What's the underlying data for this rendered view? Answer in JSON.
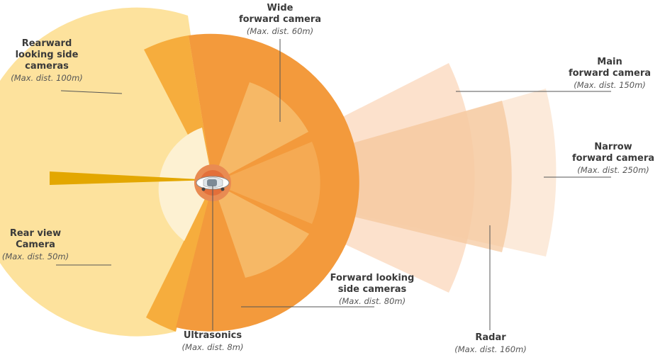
{
  "colors": {
    "narrow": "#fce6d4",
    "main": "#fbd9bf",
    "radar": "#f5c69a",
    "wide": "#f39a3c",
    "wide_inner": "#f6b866",
    "rearward": "#fde29d",
    "rear_accent": "#f6ad3d",
    "rear_inner": "#fdf1d2",
    "ultrasonics_ring": "#e98b52",
    "ultrasonics_core": "#e36f3a",
    "rear_view_strip": "#e3a700",
    "line": "#555555"
  },
  "labels": {
    "wide": {
      "title_1": "Wide",
      "title_2": "forward camera",
      "dist": "(Max. dist. 60m)"
    },
    "rearward": {
      "title_1": "Rearward",
      "title_2": "looking side",
      "title_3": "cameras",
      "dist": "(Max. dist. 100m)"
    },
    "main": {
      "title_1": "Main",
      "title_2": "forward camera",
      "dist": "(Max. dist. 150m)"
    },
    "narrow": {
      "title_1": "Narrow",
      "title_2": "forward camera",
      "dist": "(Max. dist. 250m)"
    },
    "rearview": {
      "title_1": "Rear view",
      "title_2": "Camera",
      "dist": "(Max. dist. 50m)"
    },
    "side": {
      "title_1": "Forward looking",
      "title_2": "side cameras",
      "dist": "(Max. dist. 80m)"
    },
    "ultrasonics": {
      "title_1": "Ultrasonics",
      "dist": "(Max. dist. 8m)"
    },
    "radar": {
      "title_1": "Radar",
      "dist": "(Max. dist. 160m)"
    }
  }
}
